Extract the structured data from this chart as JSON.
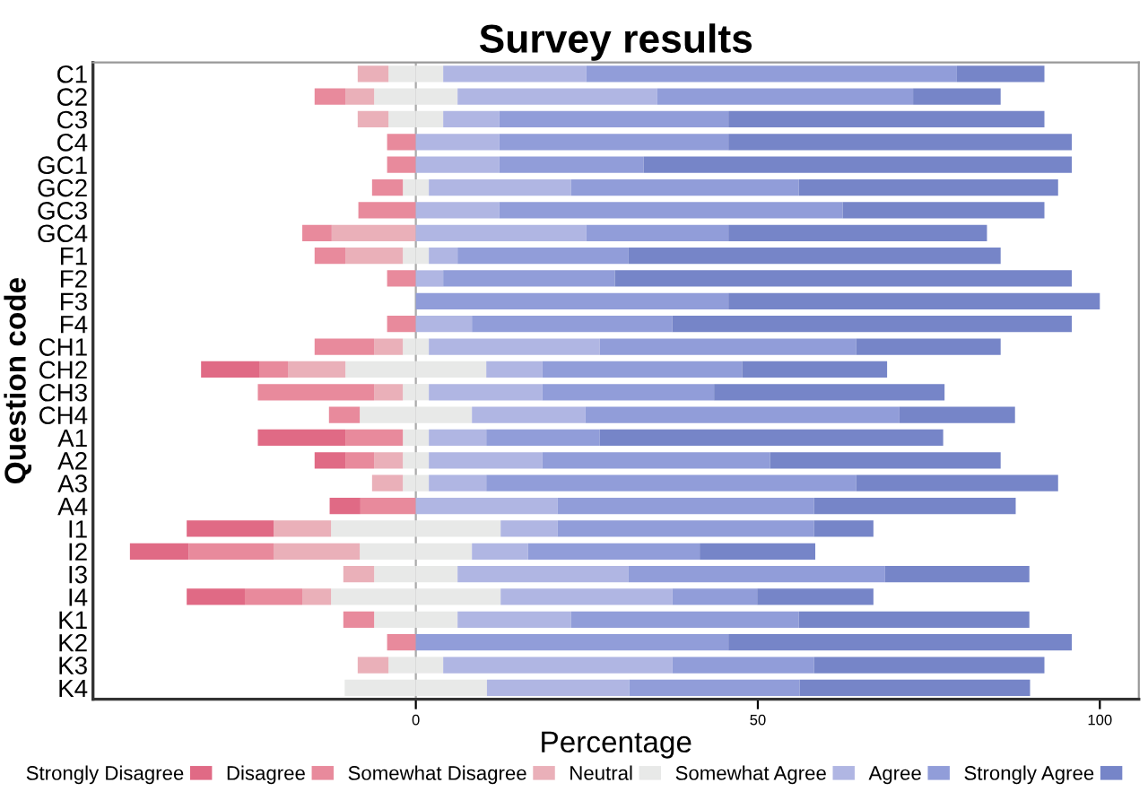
{
  "chart_data": {
    "type": "bar",
    "orientation": "horizontal",
    "stacked": true,
    "title": "Survey results",
    "xlabel": "Percentage",
    "ylabel": "Question code",
    "categories": [
      "C1",
      "C2",
      "C3",
      "C4",
      "GC1",
      "GC2",
      "GC3",
      "GC4",
      "F1",
      "F2",
      "F3",
      "F4",
      "CH1",
      "CH2",
      "CH3",
      "CH4",
      "A1",
      "A2",
      "A3",
      "A4",
      "I1",
      "I2",
      "I3",
      "I4",
      "K1",
      "K2",
      "K3",
      "K4"
    ],
    "series": [
      {
        "color": "#e8e9e8",
        "values": [
          -4.0,
          -6.1,
          -4.0,
          null,
          null,
          -1.9,
          null,
          null,
          -1.9,
          null,
          null,
          null,
          -1.9,
          -10.3,
          -1.9,
          -8.2,
          -1.9,
          -1.9,
          -1.9,
          null,
          -12.4,
          -8.2,
          -6.1,
          -12.4,
          -6.1,
          null,
          -4.0,
          -10.4
        ]
      },
      {
        "name": "Somewhat Disagree",
        "color": "#eab0b9",
        "values": [
          -4.5,
          -4.2,
          -4.5,
          null,
          null,
          null,
          null,
          -12.3,
          -8.4,
          null,
          null,
          null,
          -4.2,
          -8.4,
          -4.2,
          null,
          null,
          -4.2,
          -4.5,
          null,
          -8.4,
          -12.6,
          -4.5,
          -4.2,
          null,
          null,
          -4.5,
          null
        ]
      },
      {
        "name": "Disagree",
        "color": "#e88a9c",
        "values": [
          null,
          -4.5,
          null,
          -4.2,
          -4.2,
          -4.5,
          -8.4,
          -4.3,
          -4.5,
          -4.2,
          null,
          -4.2,
          -8.7,
          -4.2,
          -17.0,
          -4.5,
          -8.4,
          -4.2,
          null,
          -8.1,
          null,
          -12.4,
          null,
          -8.4,
          -4.5,
          -4.2,
          null,
          null
        ]
      },
      {
        "name": "Strongly Disagree",
        "color": "#e06a85",
        "values": [
          null,
          null,
          null,
          null,
          null,
          null,
          null,
          null,
          null,
          null,
          null,
          null,
          null,
          -8.5,
          null,
          null,
          -12.8,
          -4.5,
          null,
          -4.5,
          -12.7,
          -8.6,
          null,
          -8.5,
          null,
          null,
          null,
          null
        ]
      },
      {
        "name": "Neutral",
        "color": "#e8e9e8",
        "values": [
          4.0,
          6.1,
          4.0,
          null,
          null,
          1.9,
          null,
          null,
          1.9,
          null,
          null,
          null,
          1.9,
          10.3,
          1.9,
          8.2,
          1.9,
          1.9,
          1.9,
          null,
          12.4,
          8.2,
          6.1,
          12.4,
          6.1,
          null,
          4.0,
          10.4
        ]
      },
      {
        "name": "Somewhat Agree",
        "color": "#b0b6e3",
        "values": [
          20.9,
          29.2,
          8.2,
          12.2,
          12.2,
          20.8,
          12.2,
          24.9,
          4.2,
          4.0,
          null,
          8.2,
          25.0,
          8.2,
          16.6,
          16.6,
          8.4,
          16.6,
          8.4,
          20.7,
          8.3,
          8.2,
          25.0,
          25.1,
          16.6,
          null,
          33.5,
          20.8
        ]
      },
      {
        "name": "Agree",
        "color": "#919dd9",
        "values": [
          54.2,
          37.4,
          33.5,
          33.5,
          21.1,
          33.3,
          50.2,
          20.8,
          25.0,
          25.1,
          45.7,
          29.3,
          37.5,
          29.2,
          25.1,
          45.9,
          16.6,
          33.3,
          54.1,
          37.5,
          37.5,
          25.1,
          37.5,
          12.4,
          33.3,
          45.7,
          20.7,
          24.9
        ]
      },
      {
        "name": "Strongly Agree",
        "color": "#7685c8",
        "values": [
          12.8,
          12.8,
          46.2,
          50.2,
          62.6,
          37.9,
          29.5,
          37.8,
          54.4,
          66.8,
          54.3,
          58.4,
          21.1,
          21.2,
          33.7,
          16.9,
          50.2,
          33.7,
          29.5,
          29.5,
          8.7,
          16.9,
          21.1,
          17.0,
          33.7,
          50.2,
          33.7,
          33.7
        ]
      }
    ],
    "xlim": [
      -47.2,
      105.7
    ],
    "xticks": [
      0,
      50,
      100
    ],
    "ref_lines": [
      {
        "axis": "x",
        "value": 0,
        "color": "#aaaaaa",
        "line_style": "solid"
      }
    ],
    "grid": false,
    "legend": "bottom"
  }
}
